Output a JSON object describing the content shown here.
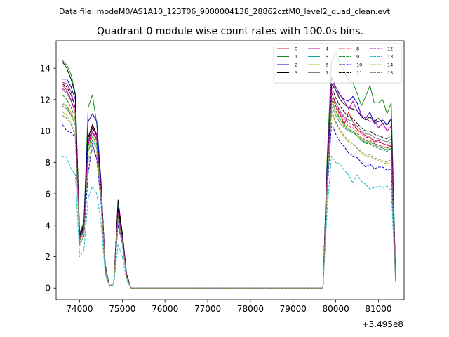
{
  "header": {
    "data_file": "Data file: modeM0/AS1A10_123T06_9000004138_28862cztM0_level2_quad_clean.evt"
  },
  "chart_data": {
    "type": "line",
    "title": "Quadrant 0 module wise count rates with 100.0s bins.",
    "xlabel": "",
    "ylabel": "",
    "x_offset_label": "+3.495e8",
    "x_offset": 349500000,
    "xlim": [
      73450,
      81600
    ],
    "ylim": [
      -0.75,
      15.75
    ],
    "xticks": [
      74000,
      75000,
      76000,
      77000,
      78000,
      79000,
      80000,
      81000
    ],
    "xtick_labels": [
      "74000",
      "75000",
      "76000",
      "77000",
      "78000",
      "79000",
      "80000",
      "81000"
    ],
    "yticks": [
      0,
      2,
      4,
      6,
      8,
      10,
      12,
      14
    ],
    "ytick_labels": [
      "0",
      "2",
      "4",
      "6",
      "8",
      "10",
      "12",
      "14"
    ],
    "grid": false,
    "legend_position": "top-right",
    "legend_columns": 4,
    "x": [
      73600,
      73700,
      73800,
      73900,
      74000,
      74100,
      74200,
      74300,
      74400,
      74500,
      74600,
      74700,
      74800,
      74900,
      75000,
      75100,
      75200,
      75300,
      79600,
      79700,
      79800,
      79900,
      80000,
      80100,
      80200,
      80300,
      80400,
      80500,
      80600,
      80700,
      80800,
      80900,
      81000,
      81100,
      81200,
      81300,
      81400
    ],
    "series": [
      {
        "name": "0",
        "color": "#d62728",
        "dash": "solid",
        "values": [
          11.7,
          11.6,
          11.0,
          10.8,
          3.0,
          3.7,
          9.2,
          10.3,
          9.7,
          6.5,
          1.3,
          0.1,
          0.3,
          4.6,
          3.2,
          0.8,
          0,
          0,
          0,
          0,
          7.0,
          12.5,
          11.6,
          11.1,
          10.4,
          11.2,
          10.6,
          10.1,
          9.9,
          9.7,
          9.6,
          9.3,
          9.4,
          9.2,
          9.1,
          9.0,
          0.5
        ]
      },
      {
        "name": "1",
        "color": "#1a8c1a",
        "dash": "solid",
        "values": [
          14.5,
          14.2,
          13.6,
          12.4,
          3.5,
          4.2,
          11.5,
          12.3,
          10.5,
          6.8,
          1.5,
          0.1,
          0.3,
          5.3,
          3.5,
          0.9,
          0,
          0,
          0,
          0,
          8.5,
          14.4,
          15.0,
          14.3,
          13.8,
          13.2,
          13.1,
          12.4,
          11.6,
          12.2,
          12.9,
          11.8,
          11.8,
          12.0,
          11.1,
          11.8,
          0.8
        ]
      },
      {
        "name": "2",
        "color": "#0000cc",
        "dash": "solid",
        "values": [
          13.3,
          13.3,
          12.8,
          12.0,
          3.4,
          4.0,
          10.6,
          11.1,
          10.6,
          6.8,
          1.4,
          0.1,
          0.3,
          5.1,
          3.5,
          0.9,
          0,
          0,
          0,
          0,
          8.0,
          13.4,
          12.8,
          12.3,
          12.0,
          11.9,
          12.2,
          11.8,
          11.0,
          10.8,
          11.2,
          10.5,
          10.6,
          10.7,
          10.4,
          10.8,
          0.7
        ]
      },
      {
        "name": "3",
        "color": "#000000",
        "dash": "solid",
        "values": [
          14.4,
          14.0,
          13.3,
          12.3,
          3.3,
          4.1,
          9.6,
          10.4,
          9.8,
          6.6,
          1.4,
          0.1,
          0.3,
          5.6,
          3.5,
          0.9,
          0,
          0,
          0,
          0,
          7.7,
          13.0,
          12.6,
          12.0,
          11.7,
          11.5,
          11.4,
          11.3,
          10.9,
          10.7,
          10.9,
          10.6,
          10.8,
          10.5,
          10.4,
          10.7,
          0.6
        ]
      },
      {
        "name": "4",
        "color": "#bf00bf",
        "dash": "solid",
        "values": [
          13.1,
          13.0,
          12.5,
          11.4,
          3.2,
          3.9,
          9.3,
          10.2,
          9.8,
          6.4,
          1.3,
          0.1,
          0.3,
          4.9,
          3.3,
          0.8,
          0,
          0,
          0,
          0,
          7.6,
          13.4,
          12.6,
          12.3,
          11.9,
          11.4,
          11.9,
          11.3,
          11.0,
          10.8,
          10.6,
          10.7,
          10.2,
          10.5,
          10.0,
          10.3,
          0.6
        ]
      },
      {
        "name": "5",
        "color": "#17a2a2",
        "dash": "solid",
        "values": [
          11.6,
          11.4,
          11.0,
          10.4,
          3.0,
          3.6,
          8.7,
          9.4,
          8.9,
          6.1,
          1.2,
          0.1,
          0.3,
          4.6,
          3.0,
          0.8,
          0,
          0,
          0,
          0,
          6.9,
          11.6,
          11.0,
          10.5,
          10.2,
          10.0,
          9.9,
          9.7,
          9.4,
          9.3,
          9.3,
          9.1,
          9.0,
          8.9,
          8.8,
          8.9,
          0.5
        ]
      },
      {
        "name": "6",
        "color": "#bcbd22",
        "dash": "solid",
        "values": [
          11.8,
          11.6,
          11.2,
          10.6,
          3.0,
          3.7,
          8.8,
          9.6,
          9.1,
          6.2,
          1.2,
          0.1,
          0.3,
          4.7,
          3.1,
          0.8,
          0,
          0,
          0,
          0,
          7.0,
          11.8,
          11.2,
          10.7,
          10.3,
          10.1,
          10.0,
          9.8,
          9.5,
          9.4,
          9.3,
          9.2,
          9.1,
          9.0,
          8.9,
          9.0,
          0.5
        ]
      },
      {
        "name": "7",
        "color": "#7f7f7f",
        "dash": "solid",
        "values": [
          12.6,
          12.4,
          11.9,
          11.2,
          3.2,
          3.8,
          9.2,
          9.9,
          9.4,
          6.4,
          1.3,
          0.1,
          0.3,
          4.8,
          3.2,
          0.8,
          0,
          0,
          0,
          0,
          7.3,
          12.4,
          11.8,
          11.3,
          10.9,
          10.7,
          10.6,
          10.3,
          10.0,
          9.8,
          9.8,
          9.6,
          9.5,
          9.4,
          9.3,
          9.5,
          0.6
        ]
      },
      {
        "name": "8",
        "color": "#d62728",
        "dash": "dashed",
        "values": [
          12.9,
          12.6,
          12.0,
          11.1,
          3.1,
          3.8,
          9.1,
          9.9,
          9.4,
          6.4,
          1.3,
          0.1,
          0.3,
          4.7,
          3.2,
          0.8,
          0,
          0,
          0,
          0,
          7.2,
          12.2,
          11.5,
          11.0,
          10.6,
          10.3,
          10.2,
          9.9,
          9.6,
          9.4,
          9.4,
          9.2,
          9.1,
          9.0,
          8.9,
          9.1,
          0.5
        ]
      },
      {
        "name": "9",
        "color": "#1a8c1a",
        "dash": "dashed",
        "values": [
          12.3,
          12.0,
          11.5,
          10.8,
          3.0,
          3.7,
          9.0,
          9.7,
          9.2,
          6.3,
          1.3,
          0.1,
          0.3,
          4.6,
          3.1,
          0.8,
          0,
          0,
          0,
          0,
          7.1,
          12.0,
          11.3,
          10.8,
          10.4,
          10.1,
          10.0,
          9.7,
          9.4,
          9.2,
          9.2,
          9.0,
          8.9,
          8.8,
          8.7,
          8.9,
          0.5
        ]
      },
      {
        "name": "10",
        "color": "#0000cc",
        "dash": "dashed",
        "values": [
          10.4,
          10.0,
          9.9,
          9.6,
          2.8,
          3.3,
          7.3,
          9.2,
          8.2,
          5.5,
          1.1,
          0.1,
          0.3,
          4.0,
          2.8,
          0.7,
          0,
          0,
          0,
          0,
          6.2,
          10.5,
          9.8,
          9.3,
          9.0,
          8.6,
          8.4,
          8.3,
          8.0,
          7.7,
          7.9,
          7.6,
          7.7,
          7.7,
          7.5,
          7.6,
          0.5
        ]
      },
      {
        "name": "11",
        "color": "#000000",
        "dash": "dashed",
        "values": [
          13.0,
          12.8,
          12.3,
          11.5,
          3.3,
          3.9,
          9.5,
          10.2,
          9.7,
          6.5,
          1.3,
          0.1,
          0.3,
          5.0,
          3.3,
          0.8,
          0,
          0,
          0,
          0,
          7.5,
          12.8,
          12.1,
          11.6,
          11.2,
          10.9,
          10.8,
          10.5,
          10.2,
          10.0,
          10.0,
          9.8,
          9.7,
          9.6,
          9.5,
          9.7,
          0.6
        ]
      },
      {
        "name": "12",
        "color": "#bf00bf",
        "dash": "dashed",
        "values": [
          12.7,
          12.5,
          12.0,
          11.2,
          3.2,
          3.8,
          9.2,
          10.0,
          9.5,
          6.4,
          1.3,
          0.1,
          0.3,
          4.8,
          3.2,
          0.8,
          0,
          0,
          0,
          0,
          7.3,
          12.4,
          11.8,
          11.2,
          10.8,
          10.5,
          10.4,
          10.1,
          9.8,
          9.6,
          9.6,
          9.4,
          9.3,
          9.2,
          9.1,
          9.3,
          0.6
        ]
      },
      {
        "name": "13",
        "color": "#17becf",
        "dash": "dashed",
        "values": [
          8.4,
          8.3,
          7.6,
          7.2,
          2.0,
          2.4,
          5.7,
          6.5,
          6.0,
          4.2,
          0.9,
          0.1,
          0.2,
          2.8,
          2.0,
          0.5,
          0,
          0,
          0,
          0,
          5.0,
          8.4,
          8.0,
          7.9,
          7.5,
          7.2,
          6.7,
          7.2,
          6.8,
          6.6,
          6.3,
          6.4,
          6.5,
          6.4,
          6.5,
          6.2,
          0.4
        ]
      },
      {
        "name": "14",
        "color": "#bcbd22",
        "dash": "dashed",
        "values": [
          11.2,
          11.0,
          10.5,
          9.9,
          2.8,
          3.4,
          8.3,
          9.0,
          8.6,
          5.9,
          1.2,
          0.1,
          0.3,
          4.4,
          2.9,
          0.7,
          0,
          0,
          0,
          0,
          6.6,
          11.1,
          10.5,
          10.0,
          9.6,
          9.3,
          9.2,
          8.9,
          8.6,
          8.4,
          8.4,
          8.2,
          8.1,
          8.0,
          7.9,
          8.1,
          0.5
        ]
      },
      {
        "name": "15",
        "color": "#7f7f7f",
        "dash": "dashed",
        "values": [
          11.0,
          10.8,
          10.4,
          9.7,
          2.7,
          3.3,
          8.1,
          8.8,
          8.4,
          5.8,
          1.2,
          0.1,
          0.3,
          4.3,
          2.9,
          0.7,
          0,
          0,
          0,
          0,
          6.5,
          11.3,
          10.6,
          10.1,
          9.7,
          9.4,
          9.2,
          8.9,
          8.7,
          8.5,
          8.5,
          8.3,
          8.2,
          8.1,
          8.0,
          8.2,
          0.5
        ]
      }
    ]
  }
}
